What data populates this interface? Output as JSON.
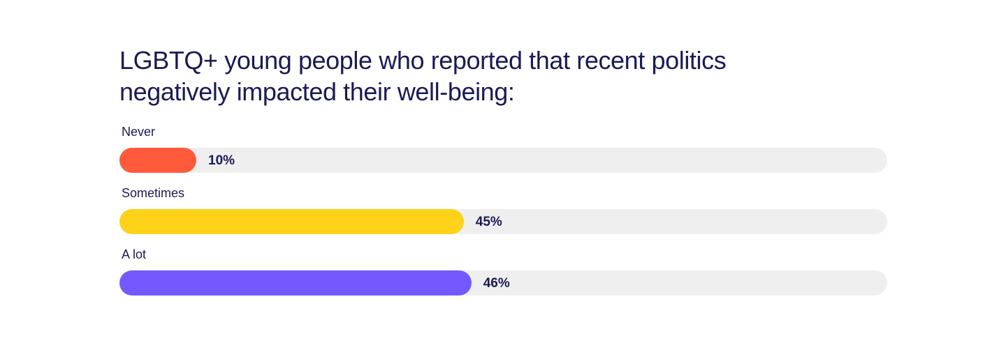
{
  "chart_data": {
    "type": "bar",
    "orientation": "horizontal",
    "title": "LGBTQ+ young people who reported that recent politics negatively impacted their well-being:",
    "categories": [
      "Never",
      "Sometimes",
      "A lot"
    ],
    "values": [
      10,
      45,
      46
    ],
    "value_labels": [
      "10%",
      "45%",
      "46%"
    ],
    "xlim": [
      0,
      100
    ],
    "colors": [
      "#ff5a3c",
      "#ffd21a",
      "#7559ff"
    ],
    "track_color": "#efefef",
    "grid": false,
    "legend": "none"
  }
}
